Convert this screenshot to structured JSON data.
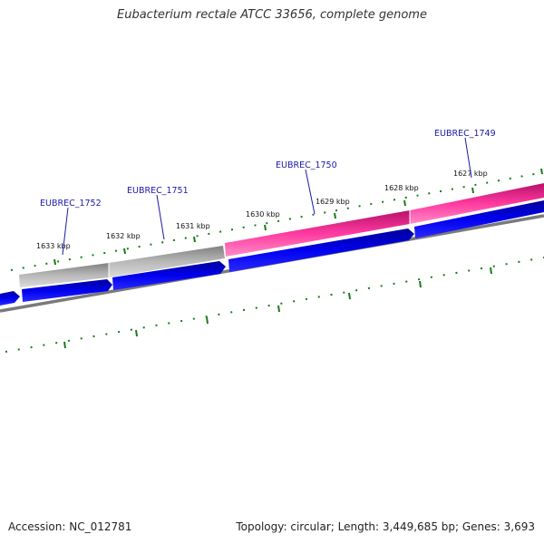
{
  "title": "Eubacterium rectale ATCC 33656, complete genome",
  "footer": {
    "accession": "Accession: NC_012781",
    "genome_info": "Topology: circular; Length: 3,449,685 bp; Genes: 3,693"
  },
  "colors": {
    "gene_forward": "#0000ee",
    "gene_reverse_pink": "#ee1c8c",
    "gene_reverse_grey": "#b0b0b0",
    "backbone": "#808080",
    "ticks": "#1a7a1a",
    "gene_label": "#1a1aa6"
  },
  "scale_labels": [
    "1633 kbp",
    "1632 kbp",
    "1631 kbp",
    "1630 kbp",
    "1629 kbp",
    "1628 kbp",
    "1627 kbp"
  ],
  "gene_labels": [
    {
      "name": "EUBREC_1752"
    },
    {
      "name": "EUBREC_1751"
    },
    {
      "name": "EUBREC_1750"
    },
    {
      "name": "EUBREC_1749"
    }
  ]
}
